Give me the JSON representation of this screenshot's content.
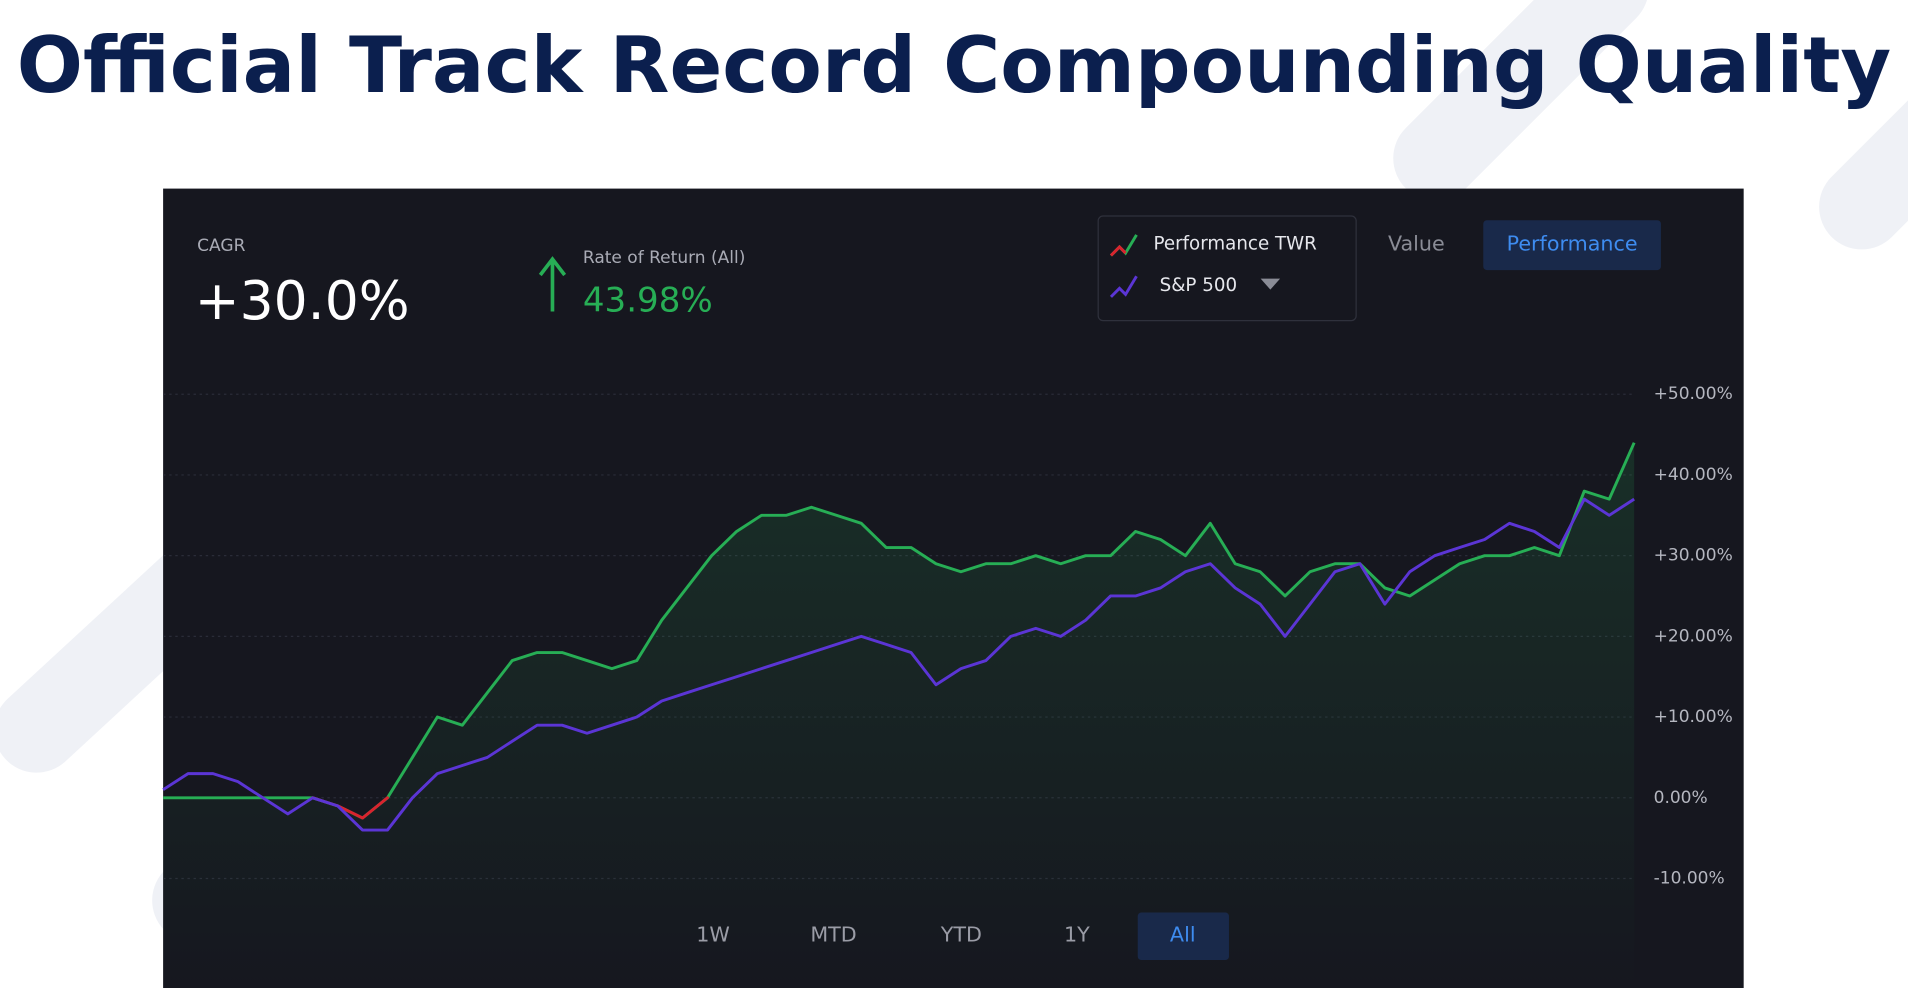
{
  "page": {
    "title": "Official Track Record Compounding Quality",
    "cagr_label": "CAGR",
    "cagr_value": "+30.0%",
    "return_label": "Rate of Return (All)",
    "return_value": "43.98%",
    "view_buttons": [
      "Value",
      "Performance"
    ],
    "range_buttons": [
      "1W",
      "MTD",
      "YTD",
      "1Y",
      "All"
    ]
  },
  "chart_data": {
    "type": "line",
    "series": [
      {
        "name": "Performance TWR",
        "color": "#27ae55",
        "negative_color": "#d9232e",
        "values": [
          0,
          0,
          0,
          0,
          0,
          0,
          0,
          -1,
          -2.5,
          0,
          5,
          10,
          9,
          13,
          17,
          18,
          18,
          17,
          16,
          17,
          22,
          26,
          30,
          33,
          35,
          35,
          36,
          35,
          34,
          31,
          31,
          29,
          28,
          29,
          29,
          30,
          29,
          30,
          30,
          33,
          32,
          30,
          34,
          29,
          28,
          25,
          28,
          29,
          29,
          26,
          25,
          27,
          29,
          30,
          30,
          31,
          30,
          38,
          37,
          44
        ]
      },
      {
        "name": "S&P 500",
        "color": "#5b35d5",
        "values": [
          1,
          3,
          3,
          2,
          0,
          -2,
          0,
          -1,
          -4,
          -4,
          0,
          3,
          4,
          5,
          7,
          9,
          9,
          8,
          9,
          10,
          12,
          13,
          14,
          15,
          16,
          17,
          18,
          19,
          20,
          19,
          18,
          14,
          16,
          17,
          20,
          21,
          20,
          22,
          25,
          25,
          26,
          28,
          29,
          26,
          24,
          20,
          24,
          28,
          29,
          24,
          28,
          30,
          31,
          32,
          34,
          33,
          31,
          37,
          35,
          37
        ]
      }
    ],
    "ylim": [
      -10,
      50
    ],
    "yticks": [
      {
        "value": -10,
        "label": "-10.00%"
      },
      {
        "value": 0,
        "label": "0.00%"
      },
      {
        "value": 10,
        "label": "+10.00%"
      },
      {
        "value": 20,
        "label": "+20.00%"
      },
      {
        "value": 30,
        "label": "+30.00%"
      },
      {
        "value": 40,
        "label": "+40.00%"
      },
      {
        "value": 50,
        "label": "+50.00%"
      }
    ],
    "grid": true
  }
}
